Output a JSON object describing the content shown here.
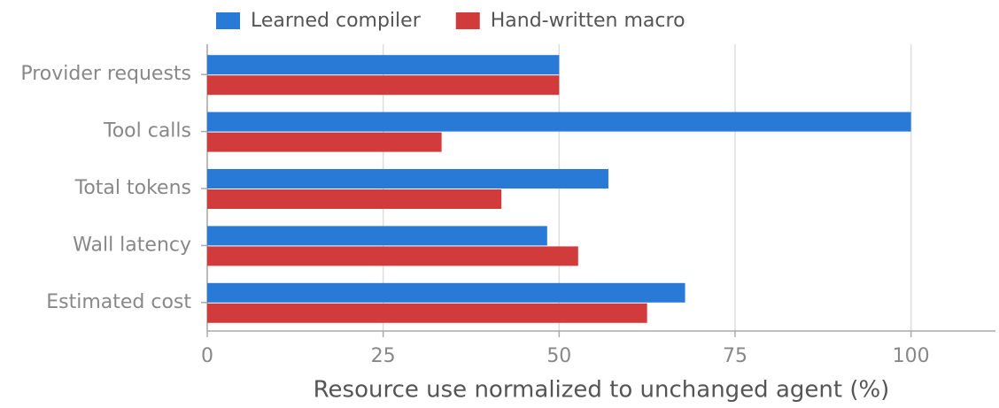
{
  "chart_data": {
    "type": "barh",
    "xlabel": "Resource use normalized to unchanged agent (%)",
    "categories": [
      "Provider requests",
      "Tool calls",
      "Total tokens",
      "Wall latency",
      "Estimated cost"
    ],
    "series": [
      {
        "name": "Learned compiler",
        "color": "#2979d6",
        "values": [
          50,
          100,
          57.0,
          48.3,
          67.9
        ]
      },
      {
        "name": "Hand-written macro",
        "color": "#d13b3b",
        "values": [
          50,
          33.3,
          41.8,
          52.7,
          62.5
        ]
      }
    ],
    "xlim": [
      0,
      112
    ],
    "xticks": [
      0,
      25,
      50,
      75,
      100
    ],
    "grid": true,
    "legend": "top"
  }
}
